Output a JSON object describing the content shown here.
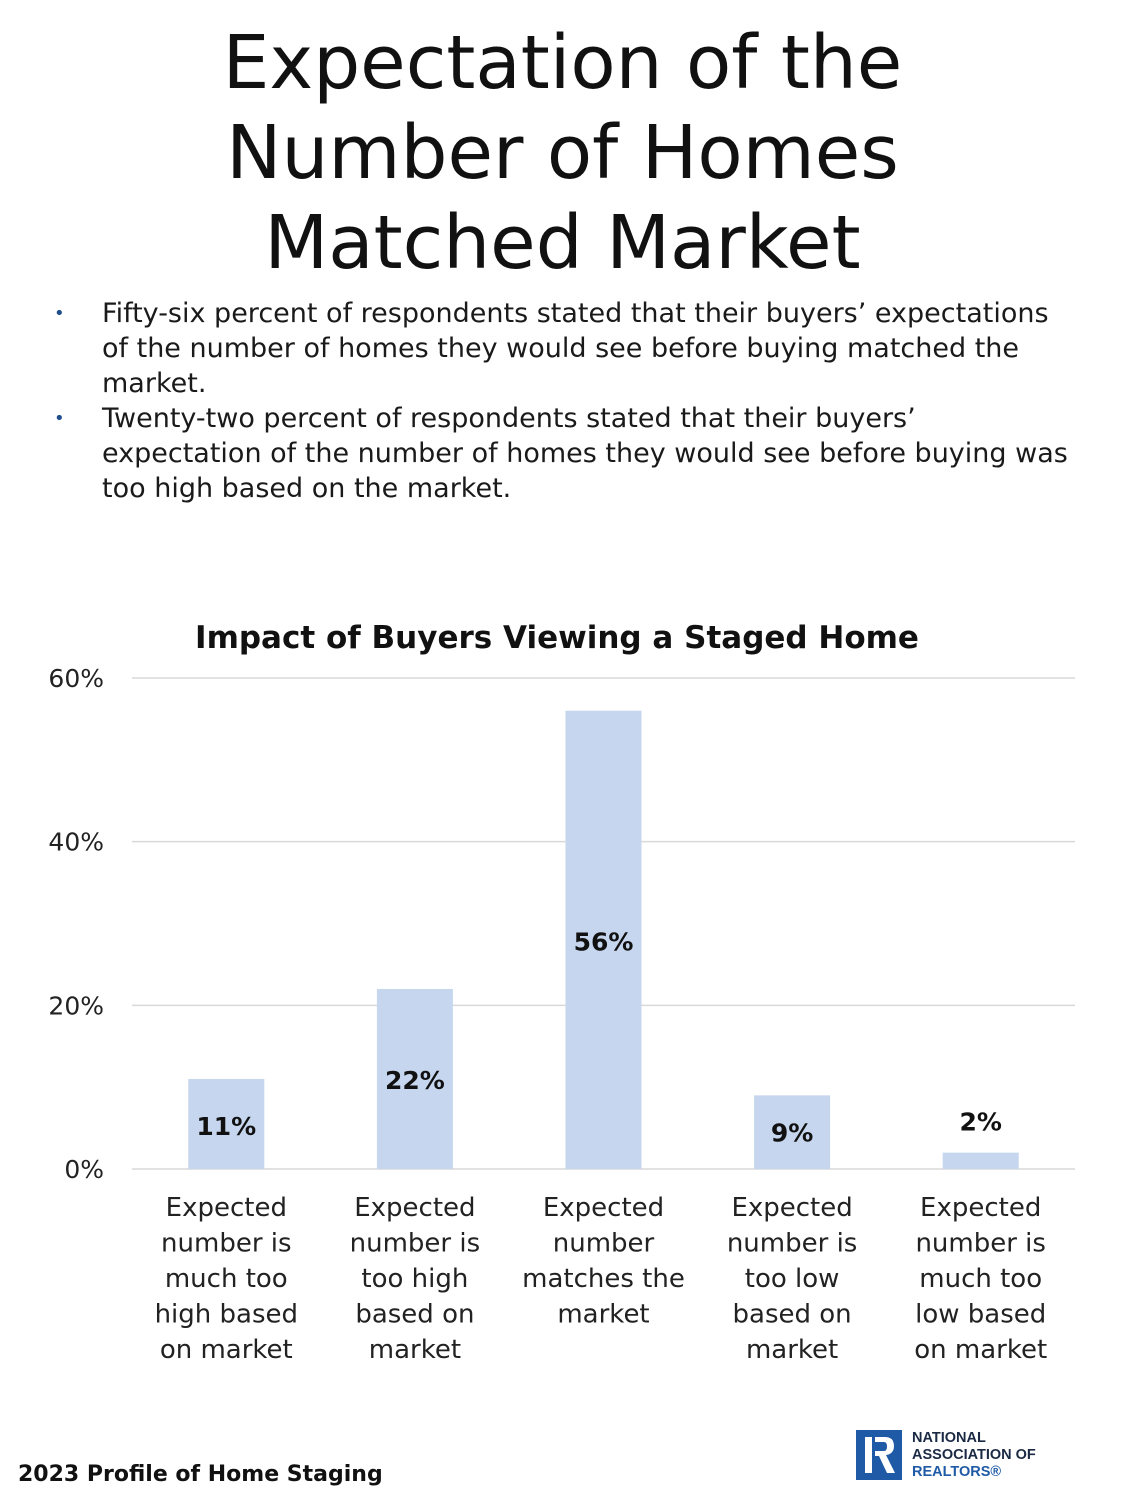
{
  "title_lines": [
    "Expectation of the",
    "Number of Homes",
    "Matched Market"
  ],
  "bullets": [
    "Fifty-six percent of respondents stated that their buyers’ expectations of the number of homes they would see before buying matched the market.",
    "Twenty-two percent of respondents stated that their buyers’ expectation of the number of homes they would see before buying was too high based on the market."
  ],
  "bullet_symbol": "•",
  "chart_data": {
    "type": "bar",
    "title": "Impact of Buyers Viewing a Staged Home",
    "categories": [
      [
        "Expected",
        "number is",
        "much too",
        "high based",
        "on market"
      ],
      [
        "Expected",
        "number is",
        "too high",
        "based on",
        "market"
      ],
      [
        "Expected",
        "number",
        "matches the",
        "market"
      ],
      [
        "Expected",
        "number is",
        "too low",
        "based on",
        "market"
      ],
      [
        "Expected",
        "number is",
        "much too",
        "low based",
        "on market"
      ]
    ],
    "values": [
      11,
      22,
      56,
      9,
      2
    ],
    "data_labels": [
      "11%",
      "22%",
      "56%",
      "9%",
      "2%"
    ],
    "ylim": [
      0,
      60
    ],
    "yticks": [
      0,
      20,
      40,
      60
    ],
    "ytick_labels": [
      "0%",
      "20%",
      "40%",
      "60%"
    ],
    "grid": true,
    "bar_color": "#c5d6ee",
    "grid_color": "#d9d9d9"
  },
  "footer": "2023 Profile of Home Staging",
  "logo": {
    "icon": "realtor-r-icon",
    "lines": [
      "NATIONAL",
      "ASSOCIATION OF",
      "REALTORS®"
    ],
    "color": "#1f5aa6"
  }
}
